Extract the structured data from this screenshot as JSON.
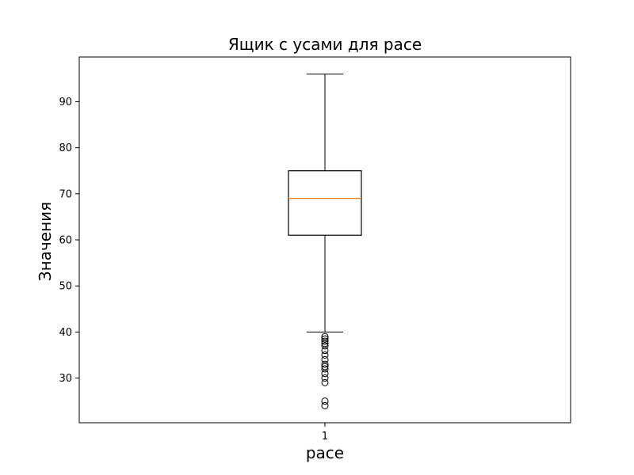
{
  "chart_data": {
    "type": "boxplot",
    "title": "Ящик с усами для pace",
    "xlabel": "pace",
    "ylabel": "Значения",
    "categories": [
      "1"
    ],
    "ylim": [
      20.3,
      99.7
    ],
    "yticks": [
      30,
      40,
      50,
      60,
      70,
      80,
      90
    ],
    "grid": false,
    "box": {
      "q1": 61,
      "median": 69,
      "q3": 75,
      "whisker_low": 40,
      "whisker_high": 96
    },
    "outliers": [
      39,
      38.5,
      38,
      37.5,
      37,
      36,
      35,
      34,
      33,
      32.5,
      32,
      31,
      30,
      29,
      25,
      24
    ],
    "colors": {
      "box": "#000000",
      "median": "#ff7f0e",
      "outlier": "#000000"
    }
  }
}
